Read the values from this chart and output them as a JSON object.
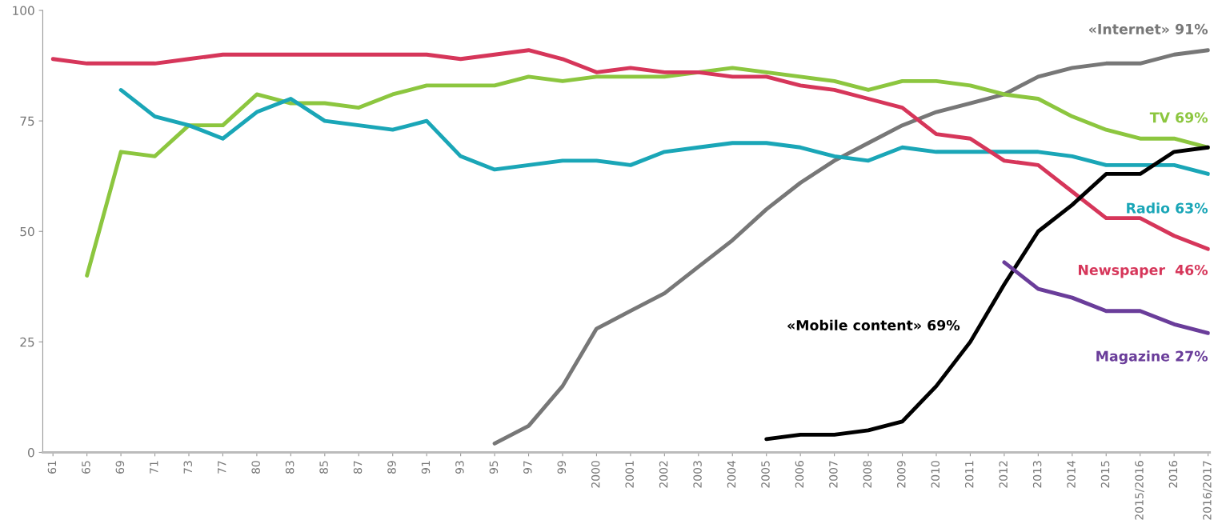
{
  "chart_data": {
    "type": "line",
    "categories": [
      "61",
      "65",
      "69",
      "71",
      "73",
      "77",
      "80",
      "83",
      "85",
      "87",
      "89",
      "91",
      "93",
      "95",
      "97",
      "99",
      "2000",
      "2001",
      "2002",
      "2003",
      "2004",
      "2005",
      "2006",
      "2007",
      "2008",
      "2009",
      "2010",
      "2011",
      "2012",
      "2013",
      "2014",
      "2015",
      "2015/2016",
      "2016",
      "2016/2017"
    ],
    "ylim": [
      0,
      100
    ],
    "yticks": [
      0,
      25,
      50,
      75,
      100
    ],
    "grid": false,
    "legend": false,
    "line_style": "solid",
    "marker": "none",
    "series": [
      {
        "name": "«Internet» 91%",
        "color": "#777777",
        "values": [
          null,
          null,
          null,
          null,
          null,
          null,
          null,
          null,
          null,
          null,
          null,
          null,
          null,
          2,
          6,
          15,
          28,
          32,
          36,
          42,
          48,
          55,
          61,
          66,
          70,
          74,
          77,
          79,
          81,
          85,
          87,
          88,
          88,
          90,
          91
        ]
      },
      {
        "name": "TV 69%",
        "color": "#8cc63f",
        "values": [
          null,
          40,
          68,
          67,
          74,
          74,
          81,
          79,
          79,
          78,
          81,
          83,
          83,
          83,
          85,
          84,
          85,
          85,
          85,
          86,
          87,
          86,
          85,
          84,
          82,
          84,
          84,
          83,
          81,
          80,
          76,
          73,
          71,
          71,
          69
        ]
      },
      {
        "name": "Radio 63%",
        "color": "#1aa6b7",
        "values": [
          null,
          null,
          82,
          76,
          74,
          71,
          77,
          80,
          75,
          74,
          73,
          75,
          67,
          64,
          65,
          66,
          66,
          65,
          68,
          69,
          70,
          70,
          69,
          67,
          66,
          69,
          68,
          68,
          68,
          68,
          67,
          65,
          65,
          65,
          63
        ]
      },
      {
        "name": "Newspaper  46%",
        "color": "#d6365a",
        "values": [
          89,
          88,
          88,
          88,
          89,
          90,
          90,
          90,
          90,
          90,
          90,
          90,
          89,
          90,
          91,
          89,
          86,
          87,
          86,
          86,
          85,
          85,
          83,
          82,
          80,
          78,
          72,
          71,
          66,
          65,
          59,
          53,
          53,
          49,
          46
        ]
      },
      {
        "name": "«Mobile content» 69%",
        "color": "#000000",
        "values": [
          null,
          null,
          null,
          null,
          null,
          null,
          null,
          null,
          null,
          null,
          null,
          null,
          null,
          null,
          null,
          null,
          null,
          null,
          null,
          null,
          null,
          3,
          4,
          4,
          5,
          7,
          15,
          25,
          38,
          50,
          56,
          63,
          63,
          68,
          69
        ]
      },
      {
        "name": "Magazine 27%",
        "color": "#6a3d9a",
        "values": [
          null,
          null,
          null,
          null,
          null,
          null,
          null,
          null,
          null,
          null,
          null,
          null,
          null,
          null,
          null,
          null,
          null,
          null,
          null,
          null,
          null,
          null,
          null,
          null,
          null,
          null,
          null,
          null,
          43,
          37,
          35,
          32,
          32,
          29,
          27
        ]
      }
    ]
  }
}
